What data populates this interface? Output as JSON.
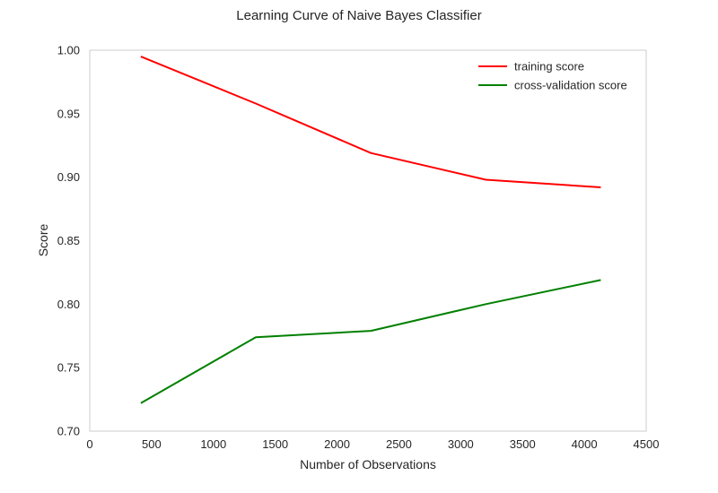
{
  "chart_data": {
    "type": "line",
    "title": "Learning Curve of Naive Bayes Classifier",
    "xlabel": "Number of Observations",
    "ylabel": "Score",
    "xlim": [
      0,
      4500
    ],
    "ylim": [
      0.7,
      1.0
    ],
    "xticks": [
      0,
      500,
      1000,
      1500,
      2000,
      2500,
      3000,
      3500,
      4000,
      4500
    ],
    "yticks": [
      0.7,
      0.75,
      0.8,
      0.85,
      0.9,
      0.95,
      1.0
    ],
    "xtick_labels": [
      "0",
      "500",
      "1000",
      "1500",
      "2000",
      "2500",
      "3000",
      "3500",
      "4000",
      "4500"
    ],
    "ytick_labels": [
      "0.70",
      "0.75",
      "0.80",
      "0.85",
      "0.90",
      "0.95",
      "1.00"
    ],
    "grid": false,
    "legend_position": "top-right",
    "x": [
      413,
      1343,
      2273,
      3203,
      4133
    ],
    "series": [
      {
        "name": "training score",
        "color": "#ff0000",
        "values": [
          0.995,
          0.958,
          0.919,
          0.898,
          0.892
        ]
      },
      {
        "name": "cross-validation score",
        "color": "#008000",
        "values": [
          0.722,
          0.774,
          0.779,
          0.8,
          0.819
        ]
      }
    ]
  }
}
